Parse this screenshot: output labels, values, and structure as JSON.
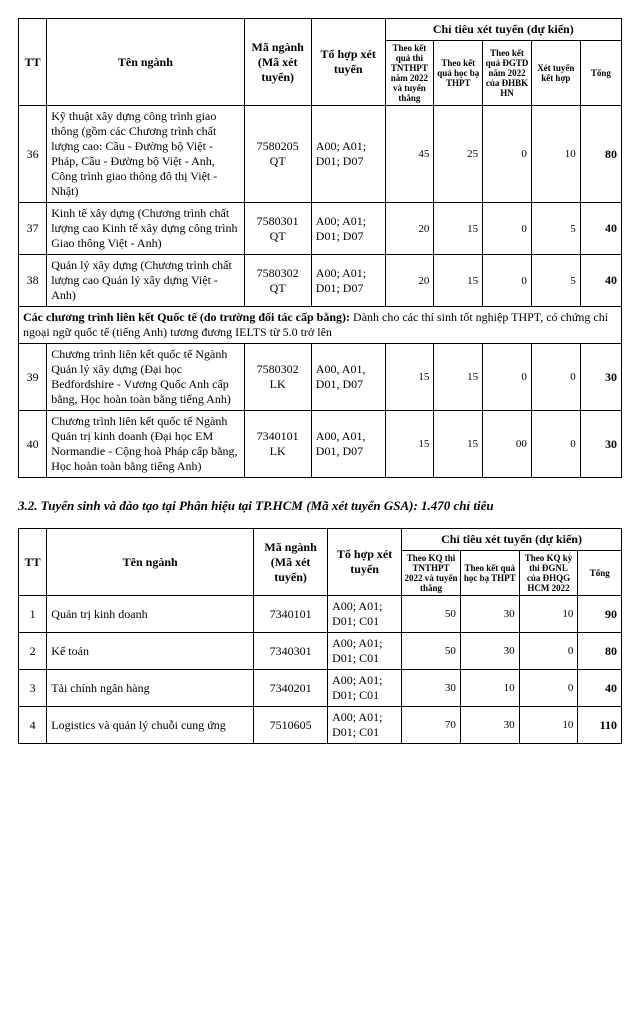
{
  "table1": {
    "headers": {
      "tt": "TT",
      "ten": "Tên ngành",
      "ma": "Mã ngành (Mã xét tuyển)",
      "th": "Tổ hợp xét tuyển",
      "group": "Chỉ tiêu xét tuyển (dự kiến)",
      "sub": {
        "a": "Theo kết quả thi TNTHPT năm 2022 và tuyển thẳng",
        "b": "Theo kết quả học bạ THPT",
        "c": "Theo kết quả ĐGTD năm 2022 của ĐHBK HN",
        "d": "Xét tuyển kết hợp",
        "tong": "Tổng"
      }
    },
    "rows": [
      {
        "tt": "36",
        "ten": "Kỹ thuật xây dựng công trình giao thông (gồm các Chương trình chất lượng cao: Cầu - Đường bộ Việt - Pháp, Cầu - Đường bộ Việt - Anh, Công trình giao thông đô thị Việt - Nhật)",
        "ma": "7580205 QT",
        "th": "A00; A01; D01; D07",
        "a": "45",
        "b": "25",
        "c": "0",
        "d": "10",
        "tong": "80"
      },
      {
        "tt": "37",
        "ten": "Kinh tế xây dựng (Chương trình chất lượng cao Kinh tế xây dựng công trình Giao thông Việt - Anh)",
        "ma": "7580301 QT",
        "th": "A00; A01; D01; D07",
        "a": "20",
        "b": "15",
        "c": "0",
        "d": "5",
        "tong": "40"
      },
      {
        "tt": "38",
        "ten": "Quản lý xây dựng (Chương trình chất lượng cao Quản lý xây dựng Việt - Anh)",
        "ma": "7580302 QT",
        "th": "A00; A01; D01; D07",
        "a": "20",
        "b": "15",
        "c": "0",
        "d": "5",
        "tong": "40"
      }
    ],
    "note_bold": "Các chương trình liên kết Quốc tế (do trường đối tác cấp bằng):",
    "note_rest": " Dành cho các thí sinh tốt nghiệp THPT, có chứng chỉ ngoại ngữ quốc tế (tiếng Anh) tương đương IELTS từ 5.0 trở lên",
    "rows2": [
      {
        "tt": "39",
        "ten": "Chương trình liên kết quốc tế Ngành Quản lý xây dựng (Đại học Bedfordshire - Vương Quốc Anh cấp bằng, Học hoàn toàn bằng tiếng Anh)",
        "ma": "7580302 LK",
        "th": "A00, A01, D01, D07",
        "a": "15",
        "b": "15",
        "c": "0",
        "d": "0",
        "tong": "30"
      },
      {
        "tt": "40",
        "ten": "Chương trình liên kết quốc tế Ngành Quản trị kinh doanh (Đại học EM Normandie - Cộng hoà Pháp cấp bằng, Học hoàn toàn bằng tiếng Anh)",
        "ma": "7340101 LK",
        "th": "A00, A01, D01, D07",
        "a": "15",
        "b": "15",
        "c": "00",
        "d": "0",
        "tong": "30"
      }
    ]
  },
  "section_title": "3.2. Tuyển sinh và đào tạo tại Phân hiệu tại TP.HCM (Mã xét tuyển GSA): 1.470 chỉ tiêu",
  "table2": {
    "headers": {
      "tt": "TT",
      "ten": "Tên ngành",
      "ma": "Mã ngành (Mã xét tuyển)",
      "th": "Tổ hợp xét tuyển",
      "group": "Chỉ tiêu xét tuyển (dự kiến)",
      "sub": {
        "a": "Theo KQ thi TNTHPT 2022 và tuyển thẳng",
        "b": "Theo kết quả học bạ THPT",
        "c": "Theo KQ kỳ thi ĐGNL của ĐHQG HCM 2022",
        "tong": "Tổng"
      }
    },
    "rows": [
      {
        "tt": "1",
        "ten": "Quản trị kinh doanh",
        "ma": "7340101",
        "th": "A00; A01; D01; C01",
        "a": "50",
        "b": "30",
        "c": "10",
        "tong": "90"
      },
      {
        "tt": "2",
        "ten": "Kế toán",
        "ma": "7340301",
        "th": "A00; A01; D01; C01",
        "a": "50",
        "b": "30",
        "c": "0",
        "tong": "80"
      },
      {
        "tt": "3",
        "ten": "Tài chính ngân hàng",
        "ma": "7340201",
        "th": "A00; A01; D01; C01",
        "a": "30",
        "b": "10",
        "c": "0",
        "tong": "40"
      },
      {
        "tt": "4",
        "ten": "Logistics và quản lý chuỗi cung ứng",
        "ma": "7510605",
        "th": "A00; A01; D01; C01",
        "a": "70",
        "b": "30",
        "c": "10",
        "tong": "110"
      }
    ]
  }
}
